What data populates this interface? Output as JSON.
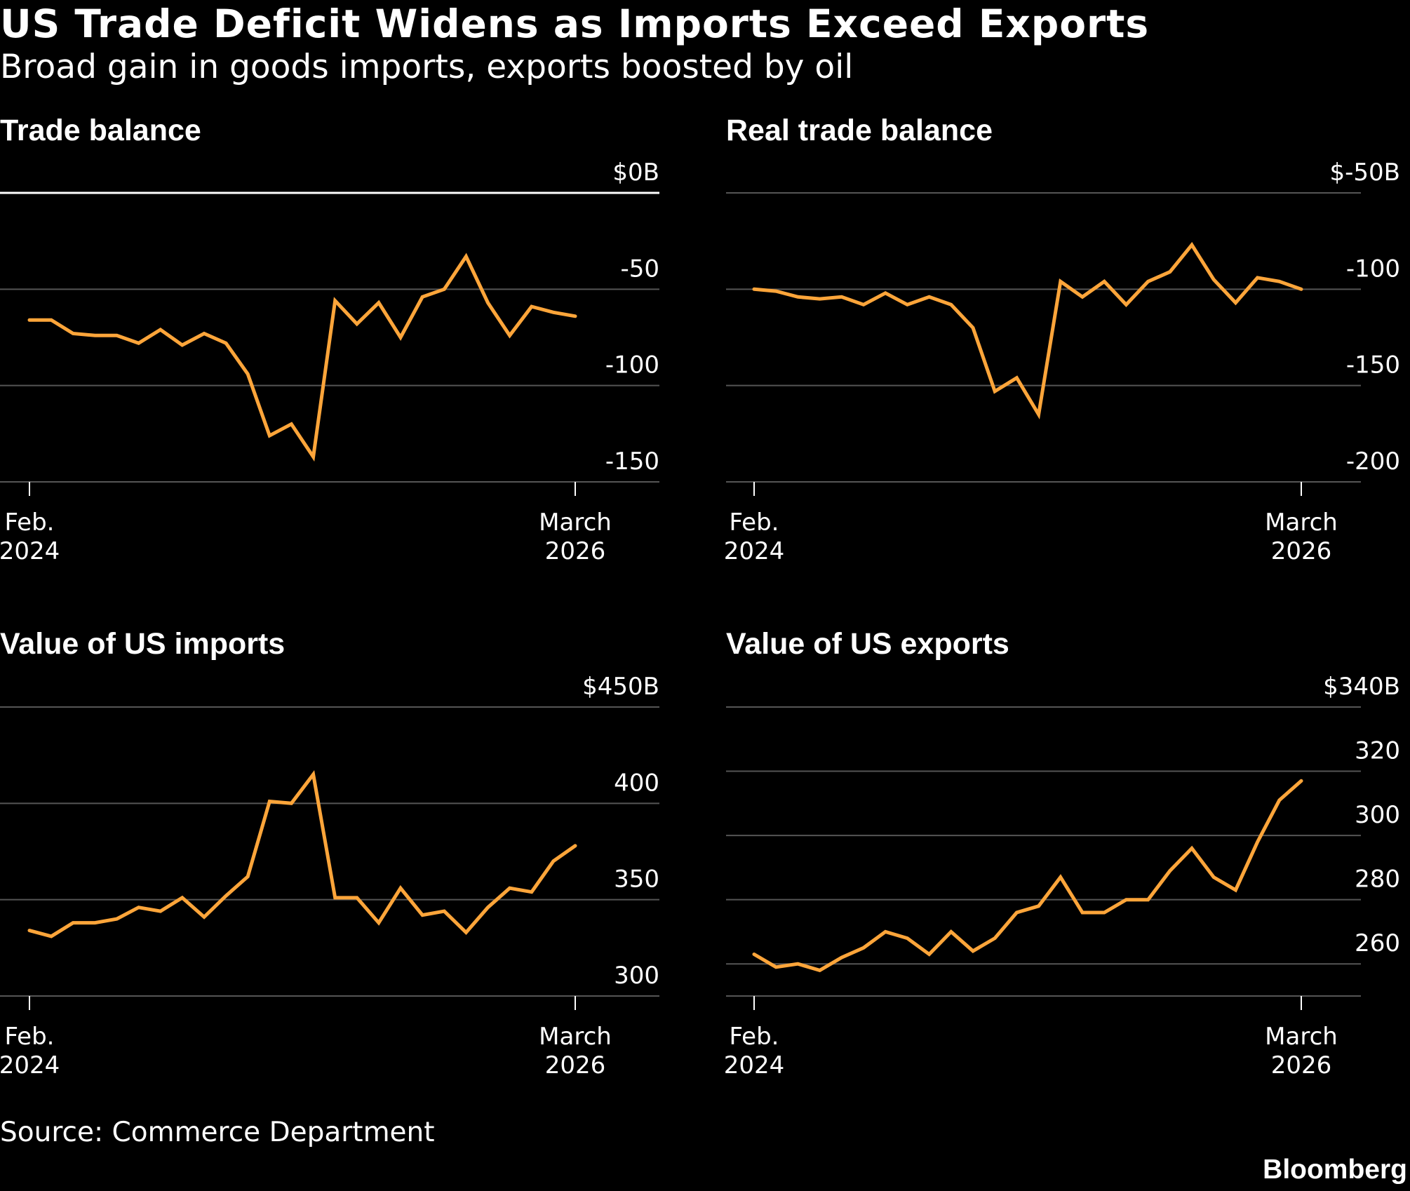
{
  "header": {
    "title": "US Trade Deficit Widens as Imports Exceed Exports",
    "subtitle": "Broad gain in goods imports, exports boosted by oil"
  },
  "footer": {
    "source": "Source: Commerce Department",
    "logo": "Bloomberg"
  },
  "colors": {
    "background": "#000000",
    "line": "#fda53a",
    "grid": "#555555",
    "zero_line": "#ffffff",
    "text": "#ffffff"
  },
  "chart_data": [
    {
      "type": "line",
      "title": "Trade balance",
      "x": [
        "2024-02",
        "2024-03",
        "2024-04",
        "2024-05",
        "2024-06",
        "2024-07",
        "2024-08",
        "2024-09",
        "2024-10",
        "2024-11",
        "2024-12",
        "2025-01",
        "2025-02",
        "2025-03",
        "2025-04",
        "2025-05",
        "2025-06",
        "2025-07",
        "2025-08",
        "2025-09",
        "2025-10",
        "2025-11",
        "2025-12",
        "2026-01",
        "2026-02",
        "2026-03"
      ],
      "series": [
        {
          "values": [
            -66,
            -66,
            -73,
            -74,
            -74,
            -78,
            -71,
            -79,
            -73,
            -78,
            -94,
            -126,
            -120,
            -137,
            -56,
            -68,
            -57,
            -75,
            -54,
            -50,
            -33,
            -57,
            -74,
            -59,
            -62,
            -64
          ]
        }
      ],
      "ylim": [
        -150,
        0
      ],
      "yticks": [
        {
          "value": 0,
          "label": "$0B"
        },
        {
          "value": -50,
          "label": "-50"
        },
        {
          "value": -100,
          "label": "-100"
        },
        {
          "value": -150,
          "label": "-150"
        }
      ],
      "xticks": [
        {
          "x": "2024-02",
          "line1": "Feb.",
          "line2": "2024"
        },
        {
          "x": "2026-03",
          "line1": "March",
          "line2": "2026"
        }
      ],
      "zero_line": true,
      "grid": true
    },
    {
      "type": "line",
      "title": "Real trade balance",
      "x": [
        "2024-02",
        "2024-03",
        "2024-04",
        "2024-05",
        "2024-06",
        "2024-07",
        "2024-08",
        "2024-09",
        "2024-10",
        "2024-11",
        "2024-12",
        "2025-01",
        "2025-02",
        "2025-03",
        "2025-04",
        "2025-05",
        "2025-06",
        "2025-07",
        "2025-08",
        "2025-09",
        "2025-10",
        "2025-11",
        "2025-12",
        "2026-01",
        "2026-02",
        "2026-03"
      ],
      "series": [
        {
          "values": [
            -100,
            -101,
            -104,
            -105,
            -104,
            -108,
            -102,
            -108,
            -104,
            -108,
            -120,
            -153,
            -146,
            -165,
            -96,
            -104,
            -96,
            -108,
            -96,
            -91,
            -77,
            -95,
            -107,
            -94,
            -96,
            -100
          ]
        }
      ],
      "ylim": [
        -200,
        -50
      ],
      "yticks": [
        {
          "value": -50,
          "label": "$-50B"
        },
        {
          "value": -100,
          "label": "-100"
        },
        {
          "value": -150,
          "label": "-150"
        },
        {
          "value": -200,
          "label": "-200"
        }
      ],
      "xticks": [
        {
          "x": "2024-02",
          "line1": "Feb.",
          "line2": "2024"
        },
        {
          "x": "2026-03",
          "line1": "March",
          "line2": "2026"
        }
      ],
      "zero_line": false,
      "grid": true
    },
    {
      "type": "line",
      "title": "Value of US imports",
      "x": [
        "2024-02",
        "2024-03",
        "2024-04",
        "2024-05",
        "2024-06",
        "2024-07",
        "2024-08",
        "2024-09",
        "2024-10",
        "2024-11",
        "2024-12",
        "2025-01",
        "2025-02",
        "2025-03",
        "2025-04",
        "2025-05",
        "2025-06",
        "2025-07",
        "2025-08",
        "2025-09",
        "2025-10",
        "2025-11",
        "2025-12",
        "2026-01",
        "2026-02",
        "2026-03"
      ],
      "series": [
        {
          "values": [
            334,
            331,
            338,
            338,
            340,
            346,
            344,
            351,
            341,
            352,
            362,
            401,
            400,
            415,
            351,
            351,
            338,
            356,
            342,
            344,
            333,
            346,
            356,
            354,
            370,
            378
          ]
        }
      ],
      "ylim": [
        300,
        450
      ],
      "yticks": [
        {
          "value": 450,
          "label": "$450B"
        },
        {
          "value": 400,
          "label": "400"
        },
        {
          "value": 350,
          "label": "350"
        },
        {
          "value": 300,
          "label": "300"
        }
      ],
      "xticks": [
        {
          "x": "2024-02",
          "line1": "Feb.",
          "line2": "2024"
        },
        {
          "x": "2026-03",
          "line1": "March",
          "line2": "2026"
        }
      ],
      "zero_line": false,
      "grid": true
    },
    {
      "type": "line",
      "title": "Value of US exports",
      "x": [
        "2024-02",
        "2024-03",
        "2024-04",
        "2024-05",
        "2024-06",
        "2024-07",
        "2024-08",
        "2024-09",
        "2024-10",
        "2024-11",
        "2024-12",
        "2025-01",
        "2025-02",
        "2025-03",
        "2025-04",
        "2025-05",
        "2025-06",
        "2025-07",
        "2025-08",
        "2025-09",
        "2025-10",
        "2025-11",
        "2025-12",
        "2026-01",
        "2026-02",
        "2026-03"
      ],
      "series": [
        {
          "values": [
            263,
            259,
            260,
            258,
            262,
            265,
            270,
            268,
            263,
            270,
            264,
            268,
            276,
            278,
            287,
            276,
            276,
            280,
            280,
            289,
            296,
            287,
            283,
            298,
            311,
            317
          ]
        }
      ],
      "ylim": [
        250,
        340
      ],
      "yticks": [
        {
          "value": 340,
          "label": "$340B"
        },
        {
          "value": 320,
          "label": "320"
        },
        {
          "value": 300,
          "label": "300"
        },
        {
          "value": 280,
          "label": "280"
        },
        {
          "value": 260,
          "label": "260"
        }
      ],
      "xticks": [
        {
          "x": "2024-02",
          "line1": "Feb.",
          "line2": "2024"
        },
        {
          "x": "2026-03",
          "line1": "March",
          "line2": "2026"
        }
      ],
      "zero_line": false,
      "grid": true
    }
  ]
}
